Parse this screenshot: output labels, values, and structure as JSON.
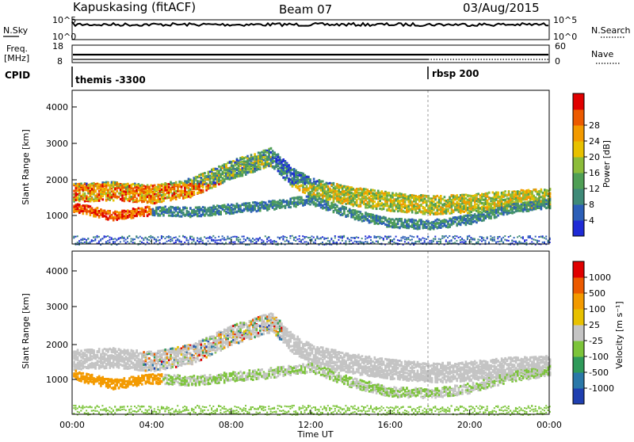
{
  "header": {
    "site": "Kapuskasing (fitACF)",
    "beam": "Beam 07",
    "date": "03/Aug/2015"
  },
  "left_labels": {
    "nsky": "N.Sky",
    "freq_line1": "Freq.",
    "freq_line2": "[MHz]",
    "cpid": "CPID"
  },
  "right_labels": {
    "nsearch": "N.Search",
    "nave": "Nave"
  },
  "noise_axis": {
    "top": "10^5",
    "bottom": "10^0",
    "right_top": "10^5",
    "right_bottom": "10^0"
  },
  "freq_axis": {
    "top": "18",
    "bottom": "8",
    "right_top": "60",
    "right_bottom": "0"
  },
  "cpid_segments": [
    {
      "label": "themis -3300",
      "start": "00:00"
    },
    {
      "label": "rbsp 200",
      "start": "18:00"
    }
  ],
  "x_axis": {
    "title": "Time UT",
    "ticks": [
      "00:00",
      "04:00",
      "08:00",
      "12:00",
      "16:00",
      "20:00",
      "00:00"
    ]
  },
  "power_panel": {
    "ylabel": "Slant Range [km]",
    "yticks": [
      "1000",
      "2000",
      "3000",
      "4000"
    ],
    "colorbar_label": "Power [dB]",
    "colorbar_ticks": [
      "4",
      "8",
      "12",
      "16",
      "20",
      "24",
      "28"
    ],
    "colors": [
      "#1f2bd6",
      "#2c5fb8",
      "#3f8a78",
      "#4f9f55",
      "#8cbc3a",
      "#e8c100",
      "#f39a00",
      "#ec5a00",
      "#e00000"
    ]
  },
  "velocity_panel": {
    "ylabel": "Slant Range [km]",
    "yticks": [
      "1000",
      "2000",
      "3000",
      "4000"
    ],
    "colorbar_label": "Velocity [m s⁻¹]",
    "colorbar_ticks": [
      "1000",
      "500",
      "100",
      "25",
      "-25",
      "-100",
      "-500",
      "-1000"
    ],
    "colors": [
      "#1f3fb0",
      "#2a78a8",
      "#2f9a5a",
      "#7cc43a",
      "#c4c4c4",
      "#e8c100",
      "#f39a00",
      "#ec5a00",
      "#e00000"
    ]
  },
  "chart_data": {
    "type": "heatmap",
    "x_range": [
      "00:00",
      "24:00"
    ],
    "y_range_km": [
      180,
      4500
    ],
    "power_db_range": [
      0,
      30
    ],
    "velocity_range": [
      -1000,
      1000
    ],
    "cpid_change_time_ut": "18:00",
    "scatter_bands": [
      {
        "name": "main",
        "points": [
          [
            0,
            1650
          ],
          [
            2,
            1700
          ],
          [
            4,
            1600
          ],
          [
            6,
            1800
          ],
          [
            8,
            2300
          ],
          [
            10,
            2650
          ],
          [
            11,
            2100
          ],
          [
            12,
            1800
          ],
          [
            14,
            1550
          ],
          [
            16,
            1400
          ],
          [
            18,
            1300
          ],
          [
            20,
            1350
          ],
          [
            22,
            1450
          ],
          [
            24,
            1500
          ]
        ]
      },
      {
        "name": "lower",
        "points": [
          [
            0,
            1250
          ],
          [
            2,
            1000
          ],
          [
            4,
            1150
          ],
          [
            6,
            1100
          ],
          [
            8,
            1200
          ],
          [
            10,
            1300
          ],
          [
            12,
            1450
          ],
          [
            14,
            1050
          ],
          [
            16,
            800
          ],
          [
            18,
            750
          ],
          [
            20,
            900
          ],
          [
            22,
            1200
          ],
          [
            24,
            1350
          ]
        ]
      }
    ]
  }
}
